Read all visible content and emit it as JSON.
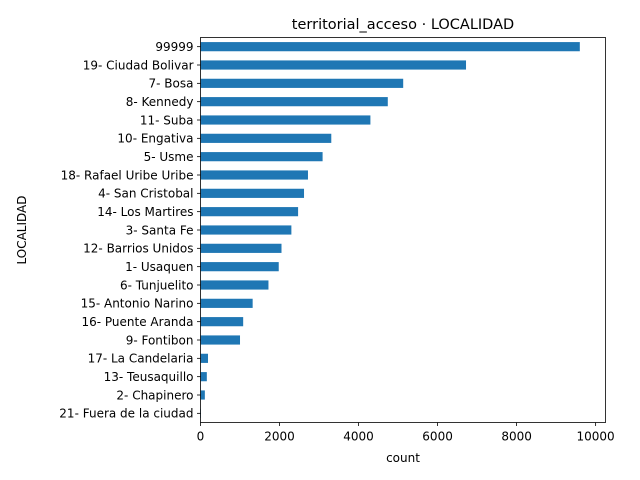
{
  "chart_data": {
    "type": "bar",
    "orientation": "horizontal",
    "title": "territorial_acceso · LOCALIDAD",
    "xlabel": "count",
    "ylabel": "LOCALIDAD",
    "xlim": [
      0,
      10250
    ],
    "xticks": [
      0,
      2000,
      4000,
      6000,
      8000,
      10000
    ],
    "grid": false,
    "bar_color": "#1f77b4",
    "categories": [
      "99999",
      "19- Ciudad Bolivar",
      "7- Bosa",
      "8- Kennedy",
      "11- Suba",
      "10- Engativa",
      "5- Usme",
      "18- Rafael Uribe Uribe",
      "4- San Cristobal",
      "14- Los Martires",
      "3- Santa Fe",
      "12- Barrios Unidos",
      "1- Usaquen",
      "6- Tunjuelito",
      "15- Antonio Narino",
      "16- Puente Aranda",
      "9- Fontibon",
      "17- La Candelaria",
      "13- Teusaquillo",
      "2- Chapinero",
      "21- Fuera de la ciudad"
    ],
    "values": [
      9600,
      6720,
      5130,
      4740,
      4300,
      3310,
      3090,
      2720,
      2620,
      2470,
      2300,
      2050,
      1980,
      1720,
      1320,
      1080,
      1000,
      190,
      160,
      110,
      10
    ]
  }
}
